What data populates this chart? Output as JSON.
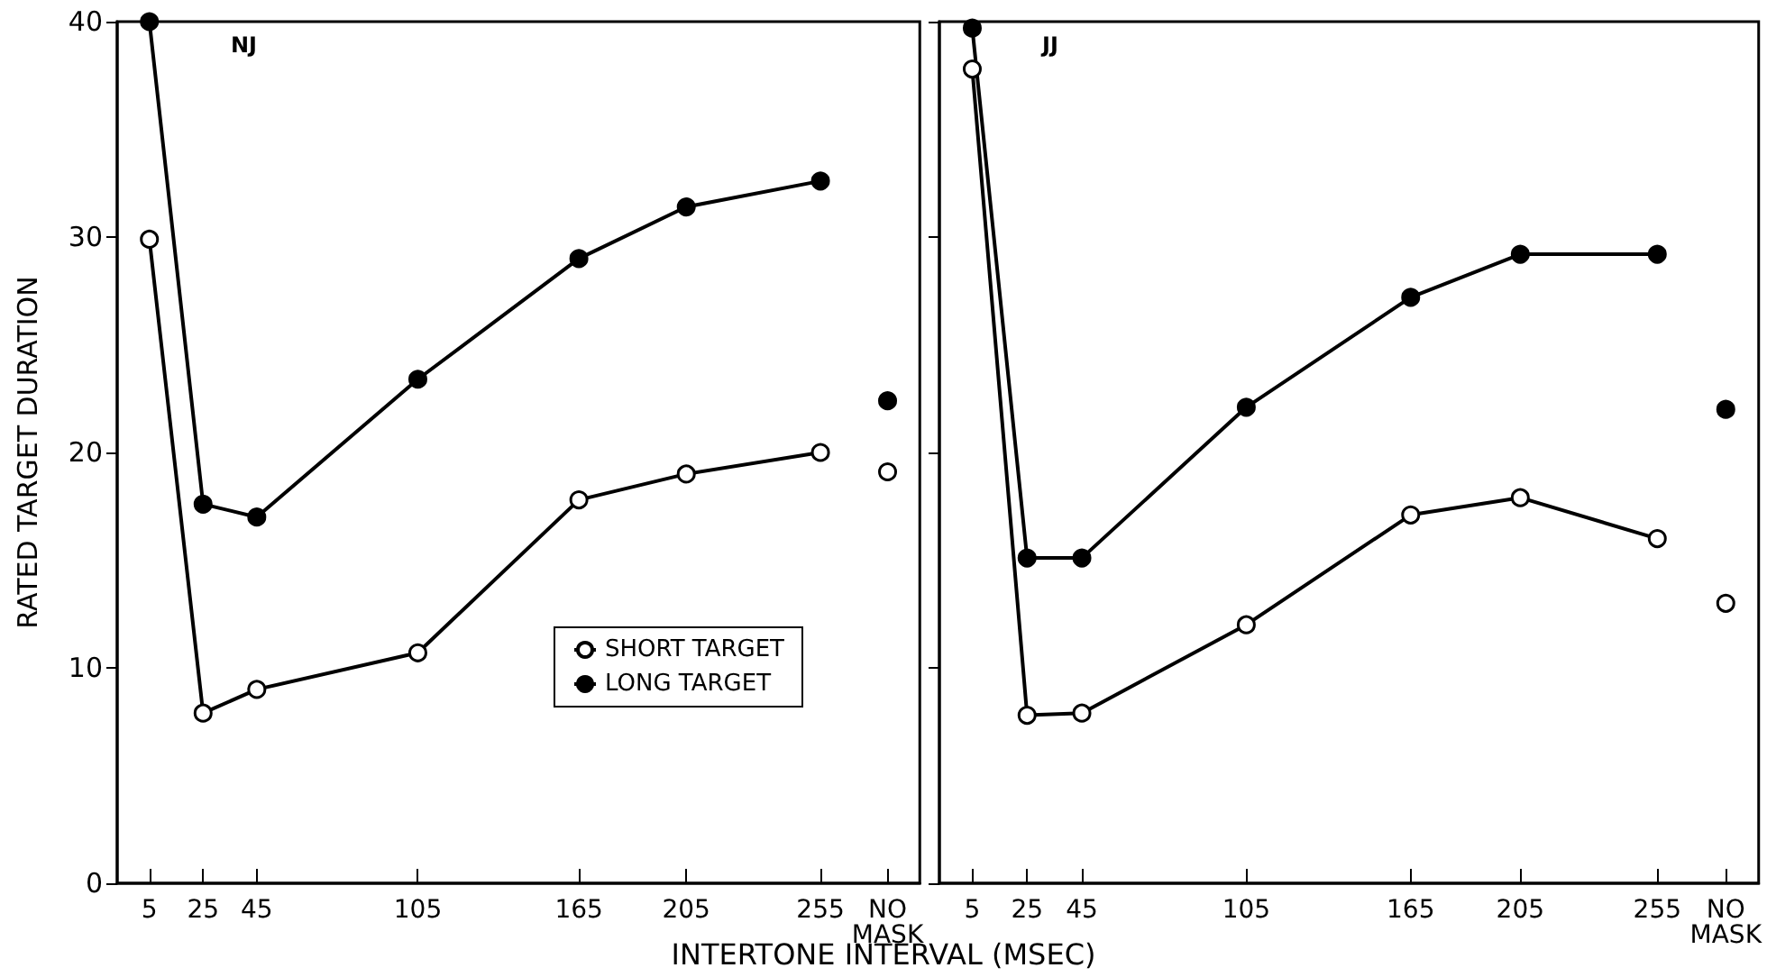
{
  "chart_data": [
    {
      "type": "line",
      "title": "NJ",
      "xlabel": "INTERTONE INTERVAL (MSEC)",
      "ylabel": "RATED TARGET DURATION",
      "xlim": [
        -7,
        292
      ],
      "xticks": [
        5,
        25,
        45,
        105,
        165,
        205,
        255,
        {
          "value": 280,
          "label": "NO MASK"
        }
      ],
      "ylim": [
        0,
        40
      ],
      "yticks": [
        0,
        10,
        20,
        30,
        40
      ],
      "grid": false,
      "legend": "bottom right",
      "marker": "circle",
      "series": [
        {
          "name": "SHORT TARGET",
          "color": "#ffffff",
          "x": [
            5,
            25,
            45,
            105,
            165,
            205,
            255
          ],
          "values": [
            29.9,
            7.9,
            9.0,
            10.7,
            17.8,
            19.0,
            20.0
          ]
        },
        {
          "name": "LONG TARGET",
          "color": "#000000",
          "x": [
            5,
            25,
            45,
            105,
            165,
            205,
            255
          ],
          "values": [
            40,
            17.6,
            17.0,
            23.4,
            29.0,
            31.4,
            32.6
          ]
        },
        {
          "type": "scatter",
          "color": "#ffffff",
          "x": [
            280
          ],
          "values": [
            19.1
          ]
        },
        {
          "type": "scatter",
          "color": "#000000",
          "x": [
            280
          ],
          "values": [
            22.4
          ]
        }
      ]
    },
    {
      "type": "line",
      "title": "JJ",
      "xlim": [
        -7,
        292
      ],
      "xticks": [
        5,
        25,
        45,
        105,
        165,
        205,
        255,
        {
          "value": 280,
          "label": "NO MASK"
        }
      ],
      "ylim": [
        0,
        40
      ],
      "yticks": [
        0,
        10,
        20,
        30,
        40
      ],
      "tick_labels": "x",
      "grid": false,
      "marker": "circle",
      "series": [
        {
          "color": "#ffffff",
          "x": [
            5,
            25,
            45,
            105,
            165,
            205,
            255
          ],
          "values": [
            37.8,
            7.8,
            7.9,
            12.0,
            17.1,
            17.9,
            16.0
          ]
        },
        {
          "color": "#000000",
          "x": [
            5,
            25,
            45,
            105,
            165,
            205,
            255
          ],
          "values": [
            39.7,
            15.1,
            15.1,
            22.1,
            27.2,
            29.2,
            29.2
          ]
        },
        {
          "type": "scatter",
          "color": "#ffffff",
          "x": [
            280
          ],
          "values": [
            13.0
          ]
        },
        {
          "type": "scatter",
          "color": "#000000",
          "x": [
            280
          ],
          "values": [
            22.0
          ]
        }
      ]
    }
  ]
}
